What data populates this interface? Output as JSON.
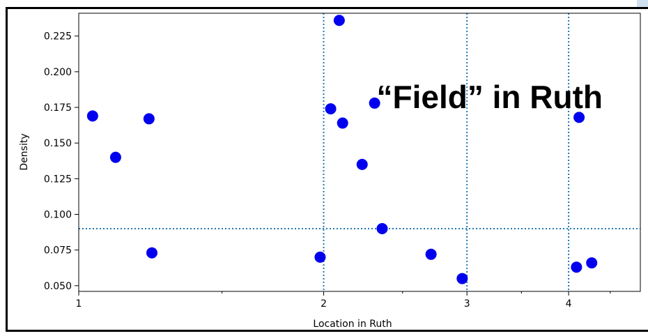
{
  "chart_data": {
    "type": "scatter",
    "title": "",
    "xlabel": "Location in Ruth",
    "ylabel": "Density",
    "xscale": "log",
    "xlim": [
      1,
      4.9
    ],
    "ylim": [
      0.046,
      0.241
    ],
    "x_ticks": [
      1,
      2,
      3,
      4
    ],
    "x_tick_labels": [
      "1",
      "2",
      "3",
      "4"
    ],
    "x_minor_ticks": [
      1.5,
      2.5,
      3.5,
      4.5
    ],
    "y_ticks": [
      0.05,
      0.075,
      0.1,
      0.125,
      0.15,
      0.175,
      0.2,
      0.225
    ],
    "y_tick_labels": [
      "0.050",
      "0.075",
      "0.100",
      "0.125",
      "0.150",
      "0.175",
      "0.200",
      "0.225"
    ],
    "grid": false,
    "marker_color": "#0000ee",
    "reference_line_color": "#1f77b4",
    "reference_lines": {
      "vertical_x": [
        2,
        3,
        4
      ],
      "horizontal_y": [
        0.09
      ]
    },
    "annotation": "“Field” in Ruth",
    "series": [
      {
        "points": [
          {
            "x": 1.04,
            "y": 0.169
          },
          {
            "x": 1.11,
            "y": 0.14
          },
          {
            "x": 1.22,
            "y": 0.167
          },
          {
            "x": 1.23,
            "y": 0.073
          },
          {
            "x": 1.98,
            "y": 0.07
          },
          {
            "x": 2.04,
            "y": 0.174
          },
          {
            "x": 2.09,
            "y": 0.236
          },
          {
            "x": 2.11,
            "y": 0.164
          },
          {
            "x": 2.23,
            "y": 0.135
          },
          {
            "x": 2.31,
            "y": 0.178
          },
          {
            "x": 2.36,
            "y": 0.09
          },
          {
            "x": 2.71,
            "y": 0.072
          },
          {
            "x": 2.96,
            "y": 0.055
          },
          {
            "x": 4.09,
            "y": 0.063
          },
          {
            "x": 4.12,
            "y": 0.168
          },
          {
            "x": 4.27,
            "y": 0.066
          }
        ]
      }
    ]
  }
}
